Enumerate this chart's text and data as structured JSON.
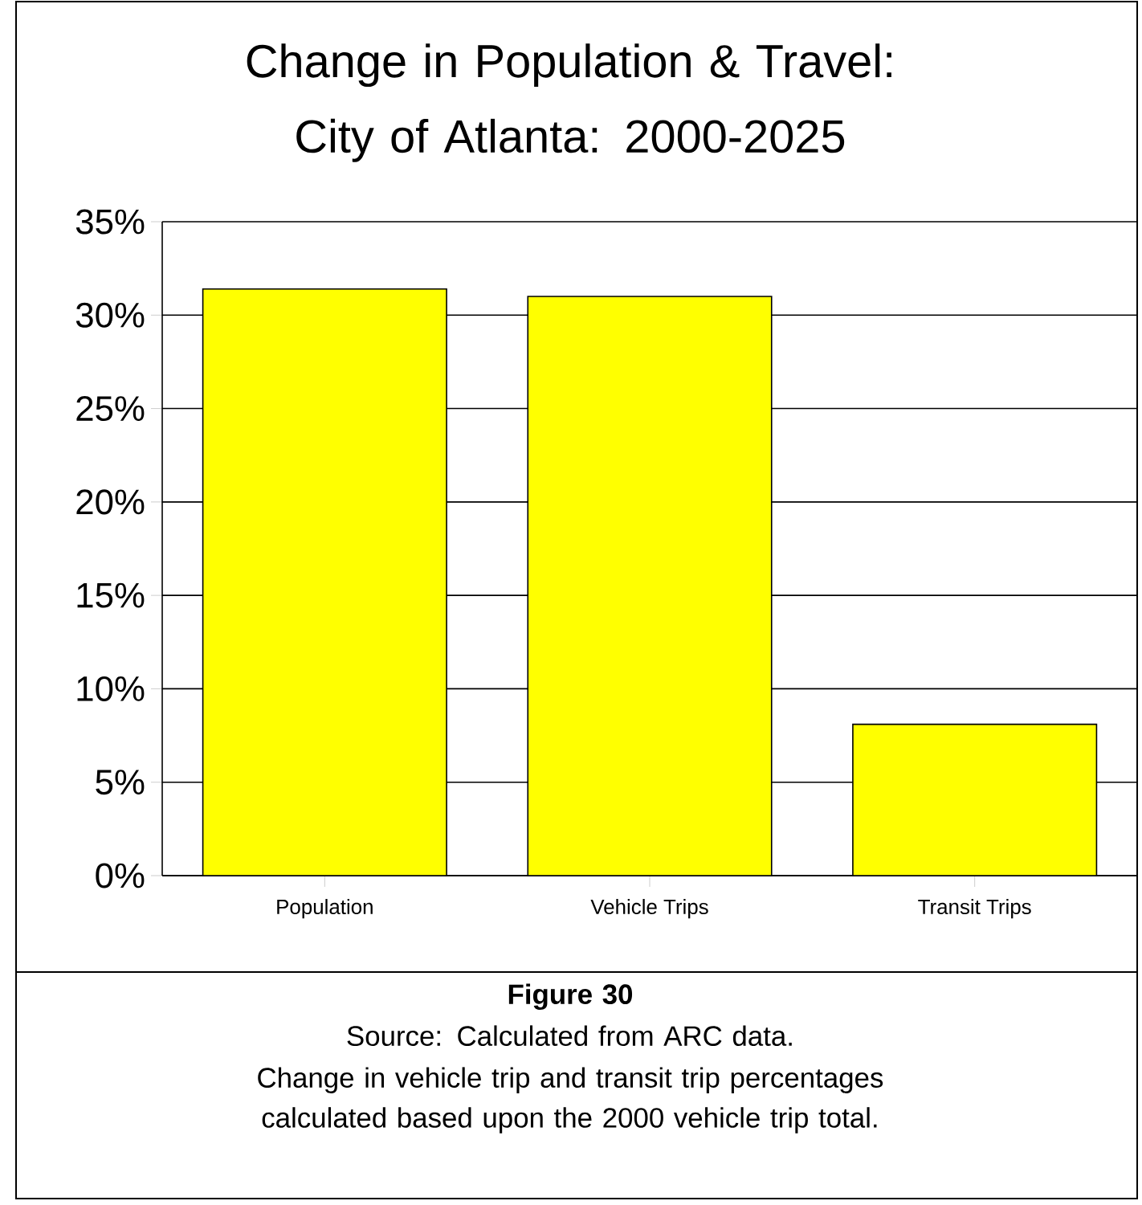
{
  "chart_data": {
    "type": "bar",
    "title": "Change in Population & Travel: City of Atlanta: 2000-2025",
    "categories": [
      "Population",
      "Vehicle Trips",
      "Transit Trips"
    ],
    "values": [
      31.4,
      31.0,
      8.1
    ],
    "color": "#ffff00",
    "ylim": [
      0,
      35
    ],
    "yticks": [
      {
        "value": 0,
        "label": "0%"
      },
      {
        "value": 5,
        "label": "5%"
      },
      {
        "value": 10,
        "label": "10%"
      },
      {
        "value": 15,
        "label": "15%"
      },
      {
        "value": 20,
        "label": "20%"
      },
      {
        "value": 25,
        "label": "25%"
      },
      {
        "value": 30,
        "label": "30%"
      },
      {
        "value": 35,
        "label": "35%"
      }
    ],
    "grid": "y",
    "annotations": [
      "Figure 30",
      "Source: Calculated from ARC data.",
      "Change in vehicle trip and transit trip percentages calculated based upon the 2000 vehicle trip total."
    ]
  }
}
